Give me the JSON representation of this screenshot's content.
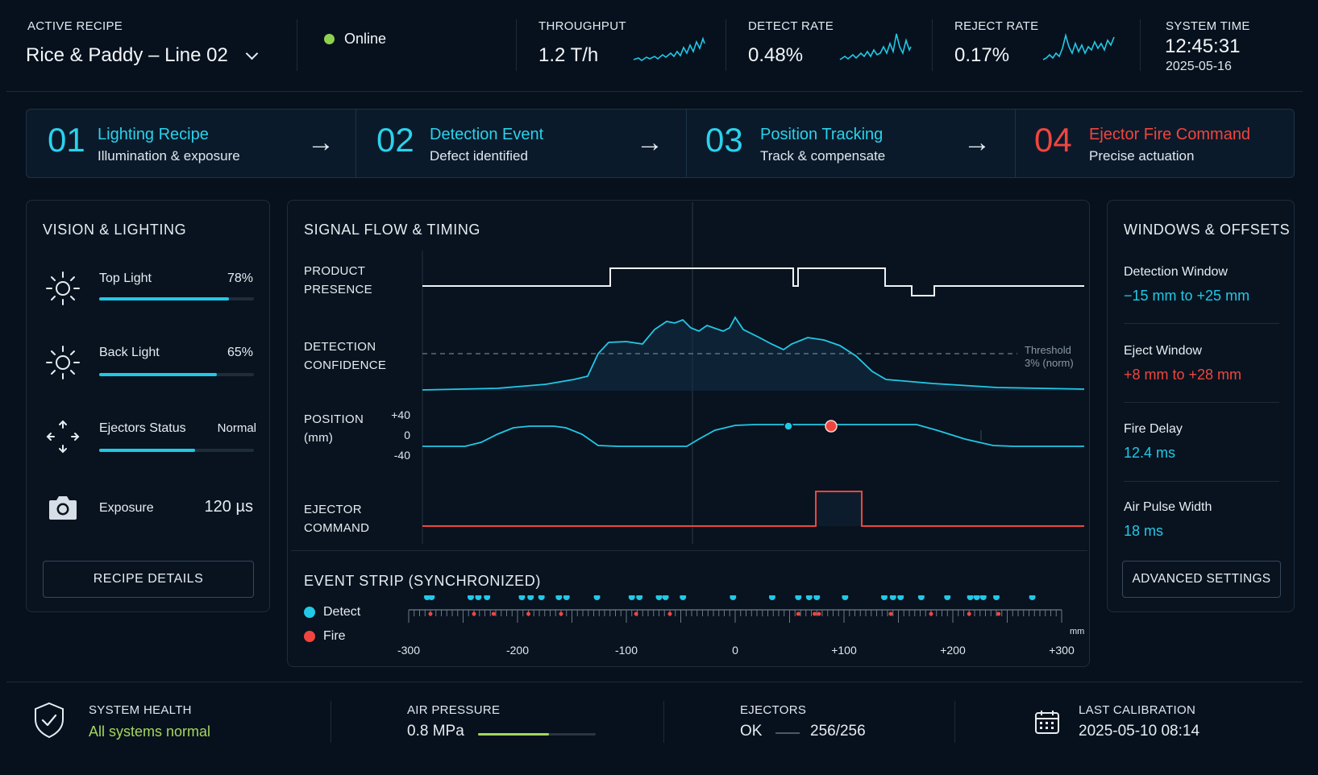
{
  "header": {
    "recipe_caption": "ACTIVE RECIPE",
    "recipe_value": "Rice & Paddy – Line 02",
    "status": "Online",
    "status_color": "#8fd14f",
    "kpis": [
      {
        "caption": "THROUGHPUT",
        "value": "1.2 T/h"
      },
      {
        "caption": "DETECT RATE",
        "value": "0.48%"
      },
      {
        "caption": "REJECT RATE",
        "value": "0.17%"
      }
    ],
    "time_caption": "SYSTEM TIME",
    "time_value": "12:45:31",
    "date_value": "2025-05-16"
  },
  "pipeline": [
    {
      "num": "01",
      "title": "Lighting Recipe",
      "sub": "Illumination & exposure",
      "color": "#2ad2ec"
    },
    {
      "num": "02",
      "title": "Detection Event",
      "sub": "Defect identified",
      "color": "#2ad2ec"
    },
    {
      "num": "03",
      "title": "Position Tracking",
      "sub": "Track & compensate",
      "color": "#2ad2ec"
    },
    {
      "num": "04",
      "title": "Ejector Fire Command",
      "sub": "Precise actuation",
      "color": "#f0453f"
    }
  ],
  "vision": {
    "title": "VISION & LIGHTING",
    "top_light_label": "Top Light",
    "top_light_value": "78%",
    "top_light_level": 0.84,
    "back_light_label": "Back Light",
    "back_light_value": "65%",
    "back_light_level": 0.76,
    "ejectors_label": "Ejectors Status",
    "ejectors_value": "Normal",
    "ejectors_level": 0.62,
    "exposure_label": "Exposure",
    "exposure_value": "120 µs",
    "button": "RECIPE DETAILS"
  },
  "signal": {
    "title": "SIGNAL FLOW & TIMING",
    "row_product_1": "PRODUCT",
    "row_product_2": "PRESENCE",
    "row_conf_1": "DETECTION",
    "row_conf_2": "CONFIDENCE",
    "row_pos_1": "POSITION",
    "row_pos_2": "(mm)",
    "row_ej_1": "EJECTOR",
    "row_ej_2": "COMMAND",
    "pos_tick_top": "+40",
    "pos_tick_mid": "0",
    "pos_tick_bot": "-40",
    "threshold_1": "Threshold",
    "threshold_2": "3% (norm)"
  },
  "events": {
    "title": "EVENT STRIP (SYNCHRONIZED)",
    "legend_detect": "Detect",
    "legend_fire": "Fire",
    "detect_color": "#22c8e6",
    "fire_color": "#f0453f",
    "unit": "mm",
    "ticks": [
      "-300",
      "-200",
      "-100",
      "0",
      "+100",
      "+200",
      "+300"
    ]
  },
  "windows": {
    "title": "WINDOWS & OFFSETS",
    "items": [
      {
        "label": "Detection Window",
        "value": "−15 mm to +25 mm",
        "color": "#22c8e6"
      },
      {
        "label": "Eject Window",
        "value": "+8 mm to +28 mm",
        "color": "#f0453f"
      },
      {
        "label": "Fire Delay",
        "value": "12.4 ms",
        "color": "#22c8e6"
      },
      {
        "label": "Air Pulse Width",
        "value": "18 ms",
        "color": "#22c8e6"
      }
    ],
    "button": "ADVANCED SETTINGS"
  },
  "footer": {
    "health_caption": "SYSTEM HEALTH",
    "health_value": "All systems normal",
    "health_color": "#a4d65e",
    "air_caption": "AIR PRESSURE",
    "air_value": "0.8 MPa",
    "air_level": 0.6,
    "ejectors_caption": "EJECTORS",
    "ejectors_ok": "OK",
    "ejectors_count": "256/256",
    "calib_caption": "LAST CALIBRATION",
    "calib_value": "2025-05-10 08:14"
  }
}
